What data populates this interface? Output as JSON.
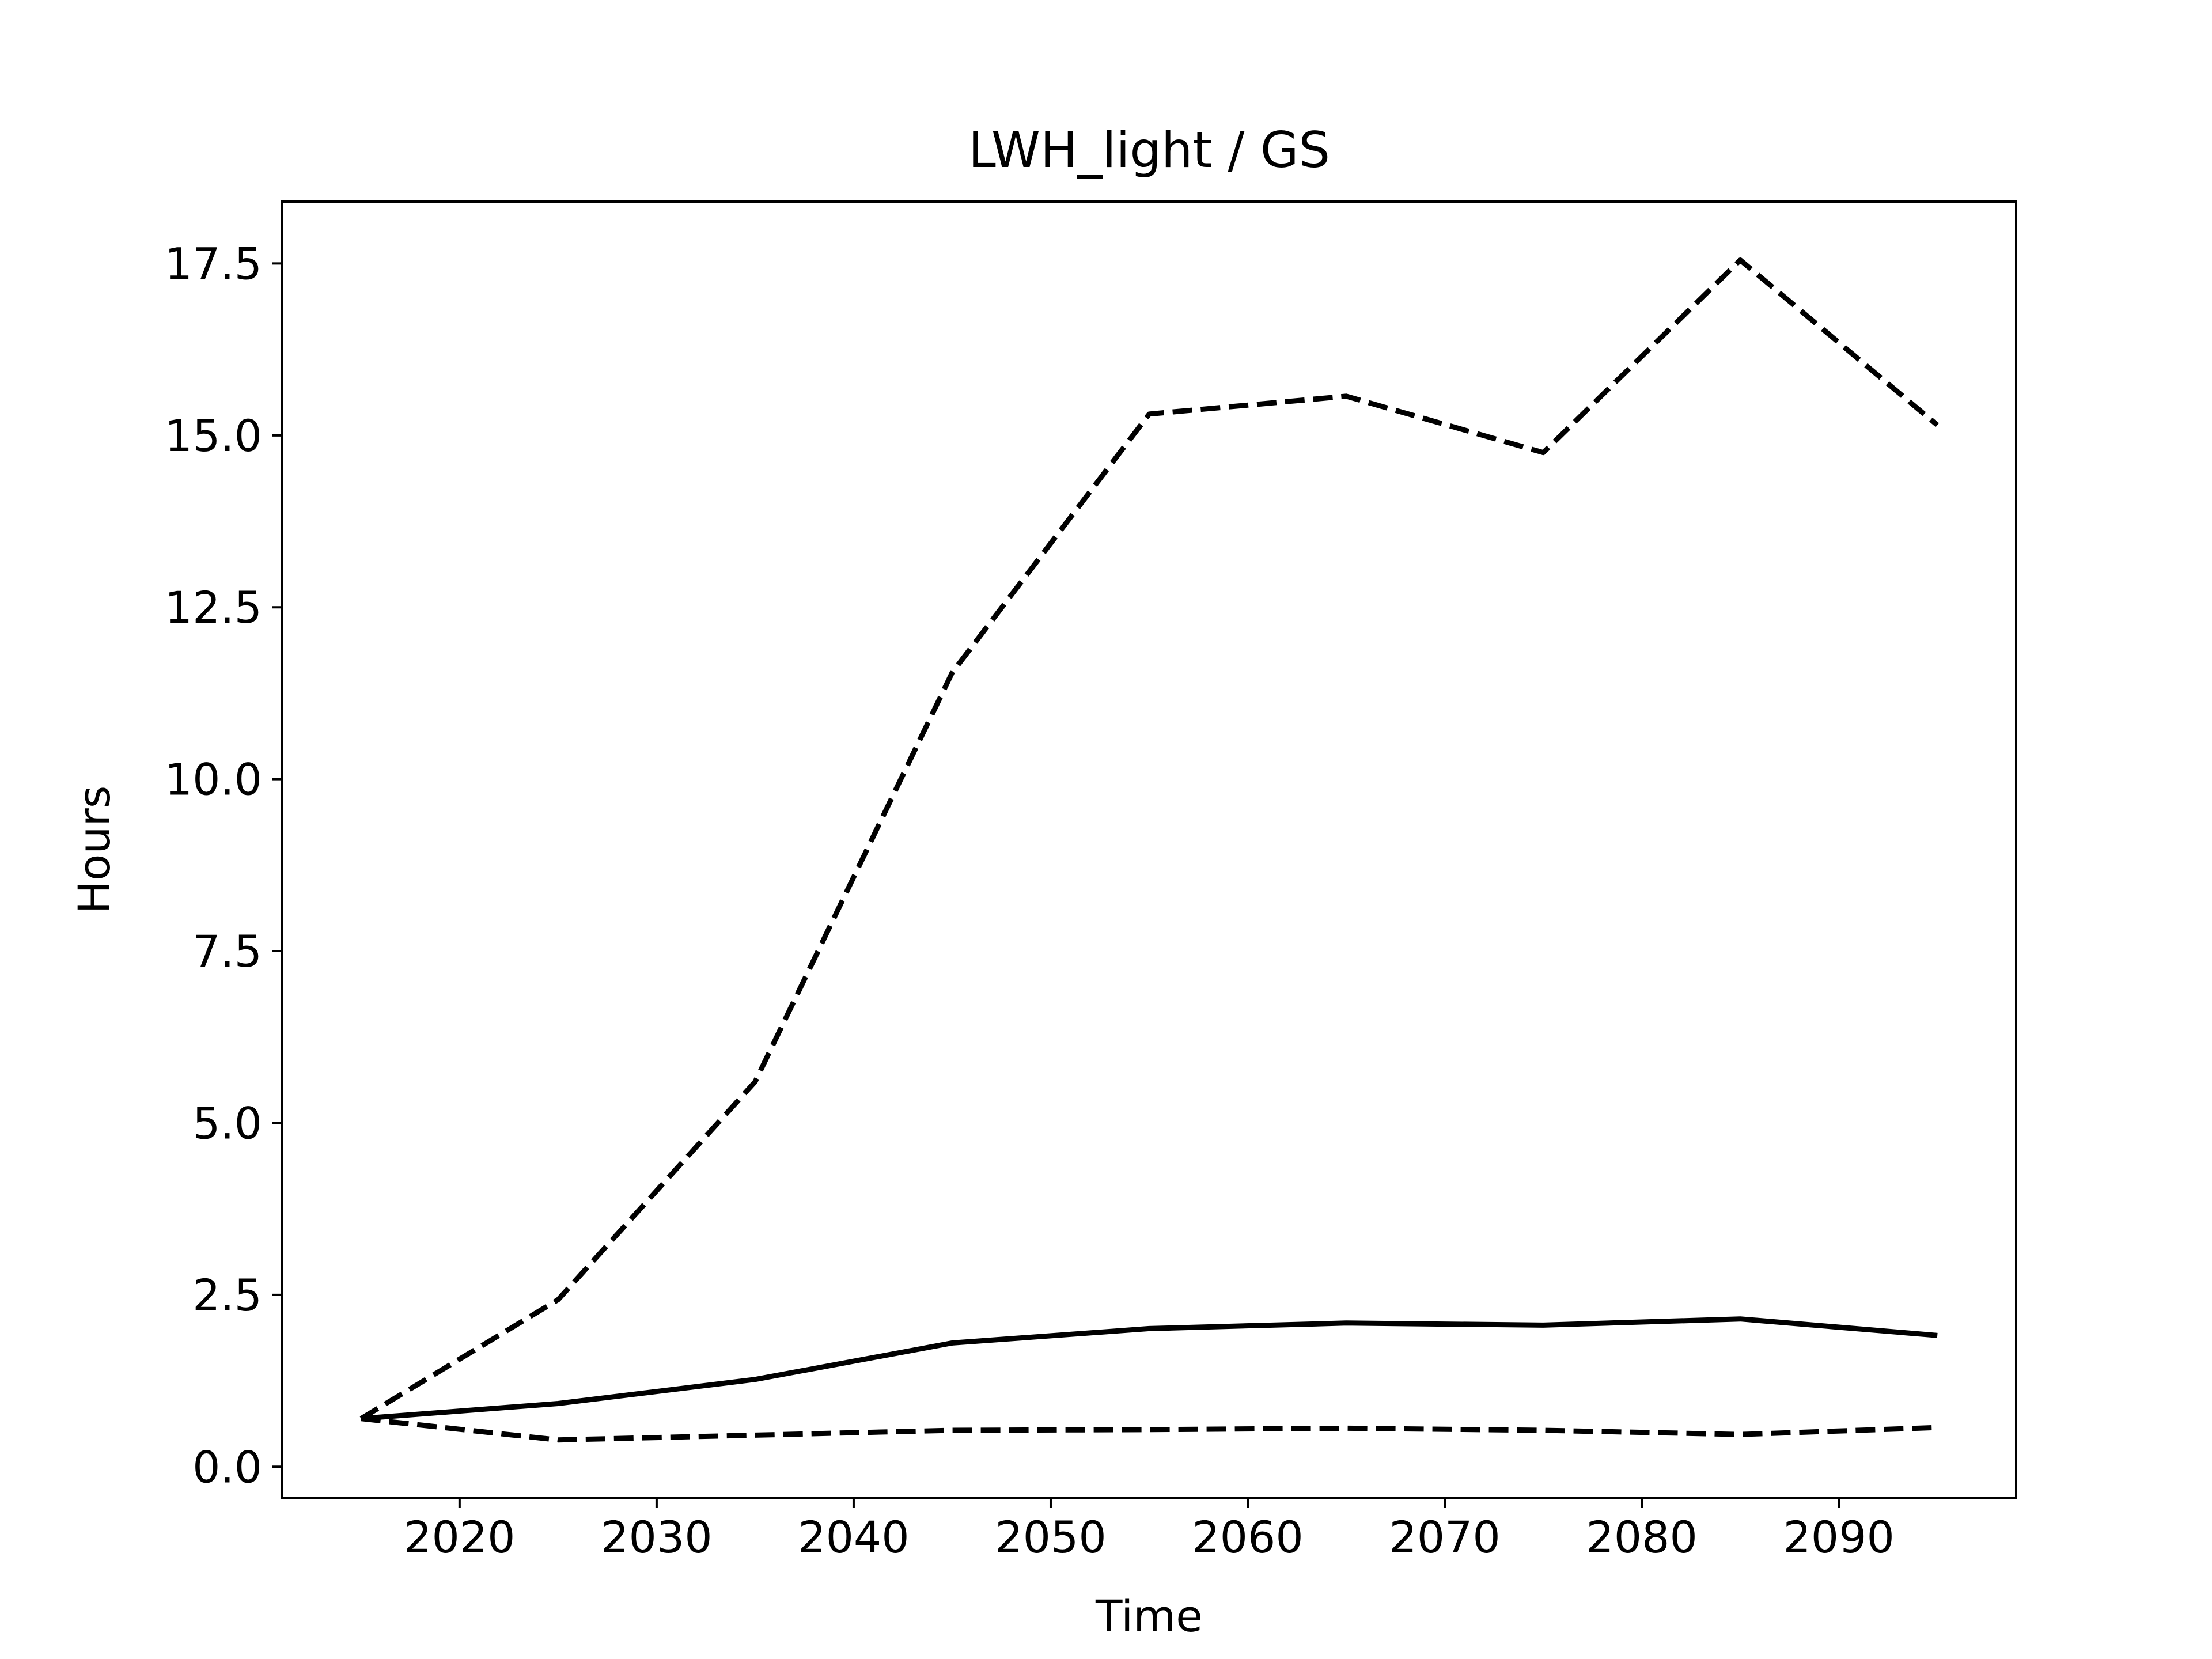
{
  "chart_data": {
    "type": "line",
    "title": "LWH_light / GS",
    "xlabel": "Time",
    "ylabel": "Hours",
    "x": [
      2015,
      2025,
      2035,
      2045,
      2055,
      2065,
      2075,
      2085,
      2095
    ],
    "series": [
      {
        "style": "solid",
        "values": [
          0.7,
          0.92,
          1.27,
          1.8,
          2.01,
          2.09,
          2.06,
          2.15,
          1.91
        ]
      },
      {
        "style": "dashed",
        "values": [
          0.7,
          2.43,
          5.6,
          11.55,
          15.31,
          15.57,
          14.75,
          17.55,
          15.15
        ]
      },
      {
        "style": "dashed",
        "values": [
          0.7,
          0.39,
          0.46,
          0.53,
          0.54,
          0.56,
          0.53,
          0.47,
          0.57
        ]
      }
    ],
    "xlim": [
      2011,
      2099
    ],
    "ylim": [
      -0.45,
      18.4
    ],
    "xticks": [
      "2020",
      "2030",
      "2040",
      "2050",
      "2060",
      "2070",
      "2080",
      "2090"
    ],
    "xtick_values": [
      2020,
      2030,
      2040,
      2050,
      2060,
      2070,
      2080,
      2090
    ],
    "yticks": [
      "0.0",
      "2.5",
      "5.0",
      "7.5",
      "10.0",
      "12.5",
      "15.0",
      "17.5"
    ],
    "ytick_values": [
      0,
      2.5,
      5,
      7.5,
      10,
      12.5,
      15,
      17.5
    ],
    "grid": false,
    "line_color": "#000000"
  }
}
